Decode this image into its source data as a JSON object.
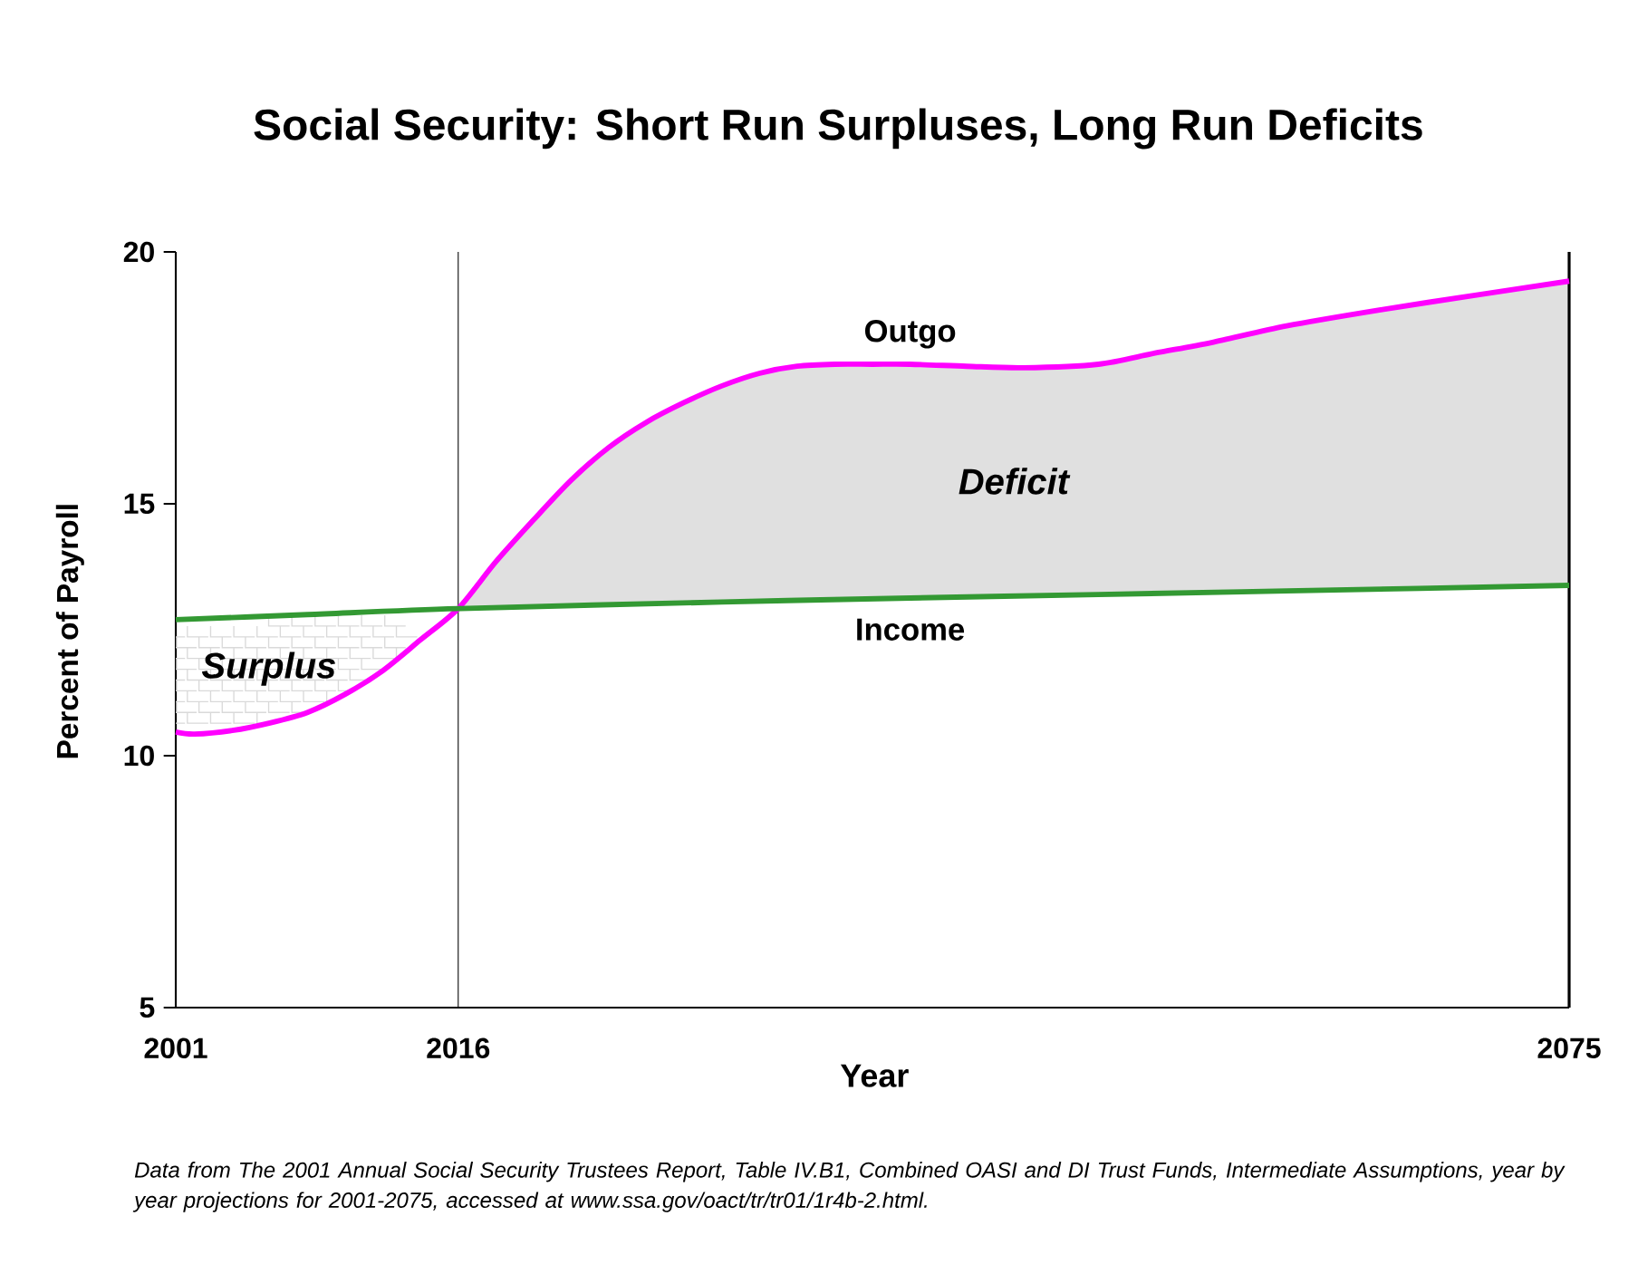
{
  "chart_data": {
    "type": "line",
    "title": "Social Security: Short Run Surpluses, Long Run Deficits",
    "xlabel": "Year",
    "ylabel": "Percent of Payroll",
    "xlim": [
      2001,
      2075
    ],
    "ylim": [
      5,
      20
    ],
    "xticks": [
      2001,
      2016,
      2075
    ],
    "yticks": [
      5,
      10,
      15,
      20
    ],
    "series": [
      {
        "name": "Outgo",
        "color": "#ff00ff",
        "x": [
          2001,
          2002,
          2004,
          2006,
          2008,
          2010,
          2012,
          2014,
          2016,
          2018,
          2020,
          2022,
          2024,
          2026,
          2028,
          2030,
          2032,
          2034,
          2036,
          2038,
          2040,
          2043,
          2046,
          2050,
          2053,
          2056,
          2060,
          2065,
          2070,
          2075
        ],
        "values": [
          10.47,
          10.43,
          10.5,
          10.65,
          10.86,
          11.22,
          11.69,
          12.3,
          12.92,
          13.85,
          14.68,
          15.47,
          16.12,
          16.62,
          17.01,
          17.34,
          17.59,
          17.73,
          17.77,
          17.77,
          17.77,
          17.73,
          17.7,
          17.77,
          17.99,
          18.2,
          18.53,
          18.85,
          19.14,
          19.42
        ]
      },
      {
        "name": "Income",
        "color": "#339933",
        "x": [
          2001,
          2008,
          2016,
          2030,
          2040,
          2050,
          2060,
          2075
        ],
        "values": [
          12.7,
          12.8,
          12.92,
          13.05,
          13.13,
          13.2,
          13.27,
          13.38
        ]
      }
    ],
    "ref_lines": [
      {
        "axis": "x",
        "value": 2016
      },
      {
        "axis": "x",
        "value": 2075
      }
    ],
    "annotations": [
      "Surplus",
      "Deficit",
      "Data from The 2001 Annual Social Security Trustees Report, Table IV.B1, Combined OASI and DI Trust Funds, Intermediate Assumptions, year by year projections for 2001-2075, accessed at www.ssa.gov/oact/tr/tr01/1r4b-2.html."
    ],
    "grid": false,
    "legend": false
  }
}
